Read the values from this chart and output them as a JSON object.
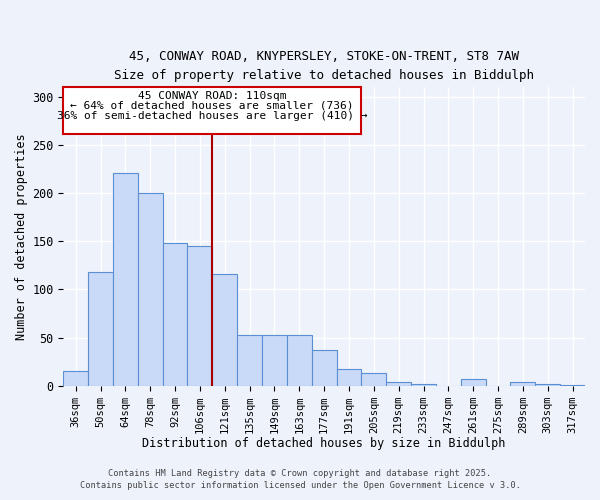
{
  "title_line1": "45, CONWAY ROAD, KNYPERSLEY, STOKE-ON-TRENT, ST8 7AW",
  "title_line2": "Size of property relative to detached houses in Biddulph",
  "xlabel": "Distribution of detached houses by size in Biddulph",
  "ylabel": "Number of detached properties",
  "categories": [
    "36sqm",
    "50sqm",
    "64sqm",
    "78sqm",
    "92sqm",
    "106sqm",
    "121sqm",
    "135sqm",
    "149sqm",
    "163sqm",
    "177sqm",
    "191sqm",
    "205sqm",
    "219sqm",
    "233sqm",
    "247sqm",
    "261sqm",
    "275sqm",
    "289sqm",
    "303sqm",
    "317sqm"
  ],
  "values": [
    15,
    118,
    221,
    200,
    148,
    145,
    116,
    53,
    53,
    53,
    37,
    17,
    13,
    4,
    2,
    0,
    7,
    0,
    4,
    2,
    1
  ],
  "bar_color": "#c9daf8",
  "bar_edge_color": "#5b8fd4",
  "vline_x": 5.5,
  "vline_color": "#aa0000",
  "annotation_title": "45 CONWAY ROAD: 110sqm",
  "annotation_line2": "← 64% of detached houses are smaller (736)",
  "annotation_line3": "36% of semi-detached houses are larger (410) →",
  "annotation_box_color": "#cc0000",
  "footer_line1": "Contains HM Land Registry data © Crown copyright and database right 2025.",
  "footer_line2": "Contains public sector information licensed under the Open Government Licence v 3.0.",
  "ylim": [
    0,
    310
  ],
  "yticks": [
    0,
    50,
    100,
    150,
    200,
    250,
    300
  ],
  "background_color": "#eef2fb",
  "grid_color": "#ffffff"
}
